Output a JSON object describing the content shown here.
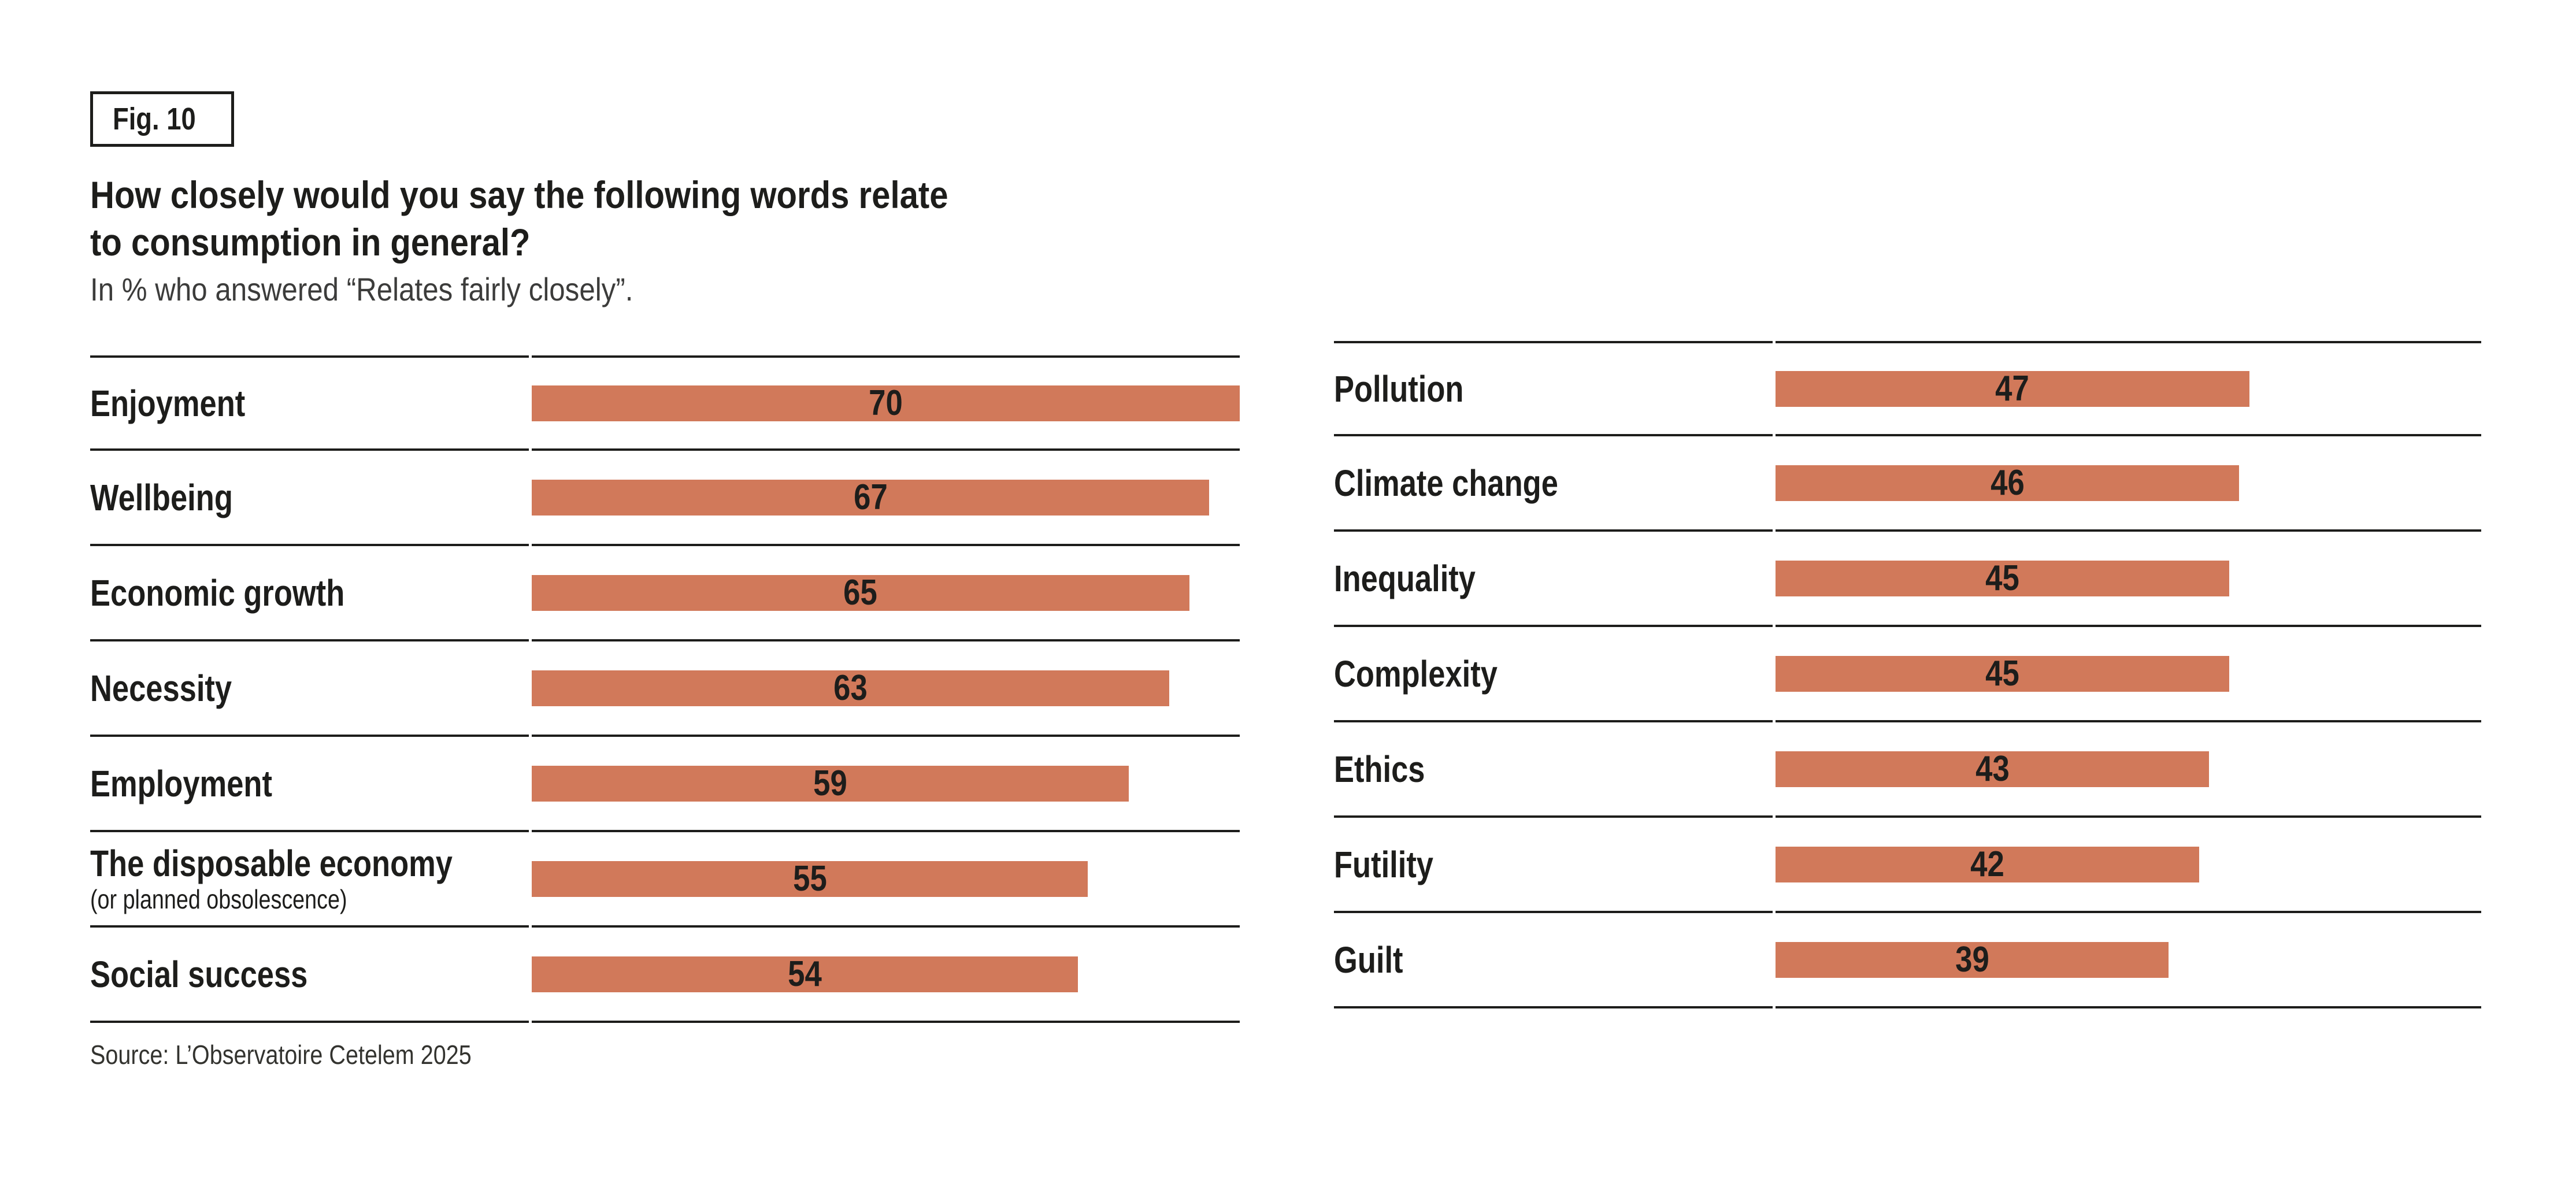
{
  "figure_tag": "Fig. 10",
  "title_line1": "How closely would you say the following words relate",
  "title_line2": "to consumption in general?",
  "subtitle": "In % who answered “Relates fairly closely”.",
  "source": "Source: L’Observatoire Cetelem 2025",
  "colors": {
    "bar": "#d1795a",
    "rule": "#1d1d1b",
    "text": "#1d1d1b",
    "muted": "#3c3c3b"
  },
  "chart_data": {
    "type": "bar",
    "orientation": "horizontal",
    "unit": "%",
    "value_axis_max": 70,
    "grid": "row-rules-only",
    "legend": "none",
    "title": "How closely would you say the following words relate to consumption in general?",
    "subtitle": "In % who answered “Relates fairly closely”.",
    "columns": [
      {
        "rows": [
          {
            "label": "Enjoyment",
            "value": 70
          },
          {
            "label": "Wellbeing",
            "value": 67
          },
          {
            "label": "Economic growth",
            "value": 65
          },
          {
            "label": "Necessity",
            "value": 63
          },
          {
            "label": "Employment",
            "value": 59
          },
          {
            "label": "The disposable economy",
            "sublabel": "(or planned obsolescence)",
            "value": 55
          },
          {
            "label": "Social success",
            "value": 54
          }
        ]
      },
      {
        "rows": [
          {
            "label": "Pollution",
            "value": 47
          },
          {
            "label": "Climate change",
            "value": 46
          },
          {
            "label": "Inequality",
            "value": 45
          },
          {
            "label": "Complexity",
            "value": 45
          },
          {
            "label": "Ethics",
            "value": 43
          },
          {
            "label": "Futility",
            "value": 42
          },
          {
            "label": "Guilt",
            "value": 39
          }
        ]
      }
    ]
  }
}
